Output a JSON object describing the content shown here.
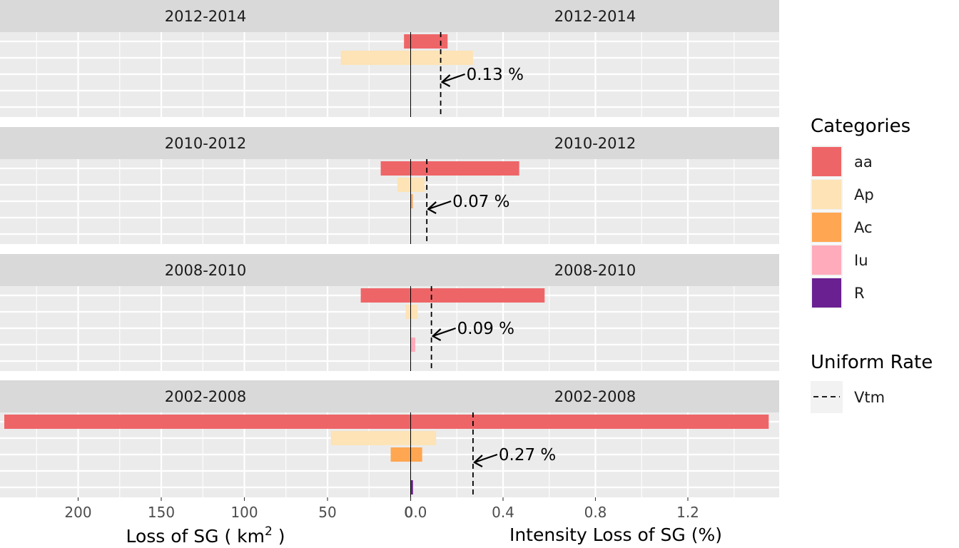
{
  "chart_data": {
    "type": "bar",
    "layout": "back-to-back horizontal bars, faceted by period (left: loss of SG, right: intensity loss of SG)",
    "panels": [
      {
        "period": "2012-2014",
        "loss_km2": {
          "aa": 4,
          "Ap": 42,
          "Ac": 0,
          "Iu": 0,
          "R": 0
        },
        "intensity_pct": {
          "aa": 0.16,
          "Ap": 0.27,
          "Ac": 0,
          "Iu": 0,
          "R": 0
        },
        "uniform_rate": 0.13,
        "uniform_rate_label": "0.13 %"
      },
      {
        "period": "2010-2012",
        "loss_km2": {
          "aa": 18,
          "Ap": 8,
          "Ac": 0,
          "Iu": 0,
          "R": 0
        },
        "intensity_pct": {
          "aa": 0.47,
          "Ap": 0.06,
          "Ac": 0.005,
          "Iu": 0,
          "R": 0
        },
        "uniform_rate": 0.07,
        "uniform_rate_label": "0.07 %"
      },
      {
        "period": "2008-2010",
        "loss_km2": {
          "aa": 30,
          "Ap": 3,
          "Ac": 0,
          "Iu": 0,
          "R": 0
        },
        "intensity_pct": {
          "aa": 0.58,
          "Ap": 0.03,
          "Ac": 0,
          "Iu": 0.02,
          "R": 0
        },
        "uniform_rate": 0.09,
        "uniform_rate_label": "0.09 %"
      },
      {
        "period": "2002-2008",
        "loss_km2": {
          "aa": 245,
          "Ap": 48,
          "Ac": 12,
          "Iu": 0,
          "R": 0
        },
        "intensity_pct": {
          "aa": 1.55,
          "Ap": 0.11,
          "Ac": 0.05,
          "Iu": 0,
          "R": 0.01
        },
        "uniform_rate": 0.27,
        "uniform_rate_label": "0.27 %"
      }
    ],
    "categories": [
      "aa",
      "Ap",
      "Ac",
      "Iu",
      "R"
    ],
    "colors": {
      "aa": "#ee6568",
      "Ap": "#fde3b5",
      "Ac": "#fea652",
      "Iu": "#ffabbb",
      "R": "#6a2090"
    },
    "left_axis": {
      "title_prefix": "Loss of SG ( km",
      "title_sup": "2",
      "title_suffix": " )",
      "ticks": [
        200,
        150,
        100,
        50,
        0
      ],
      "range": [
        0,
        245
      ]
    },
    "right_axis": {
      "title": "Intensity Loss of SG (%)",
      "ticks": [
        0.0,
        0.4,
        0.8,
        1.2
      ],
      "tick_labels": [
        "0.0",
        "0.4",
        "0.8",
        "1.2"
      ],
      "range": [
        0,
        1.57
      ]
    },
    "legend": {
      "title": "Categories",
      "items": [
        "aa",
        "Ap",
        "Ac",
        "Iu",
        "R"
      ],
      "line_title": "Uniform Rate",
      "line_item": "Vtm"
    },
    "colors_theme": {
      "panel": "#ebebeb",
      "strip": "#d9d9d9",
      "grid": "#ffffff"
    }
  }
}
